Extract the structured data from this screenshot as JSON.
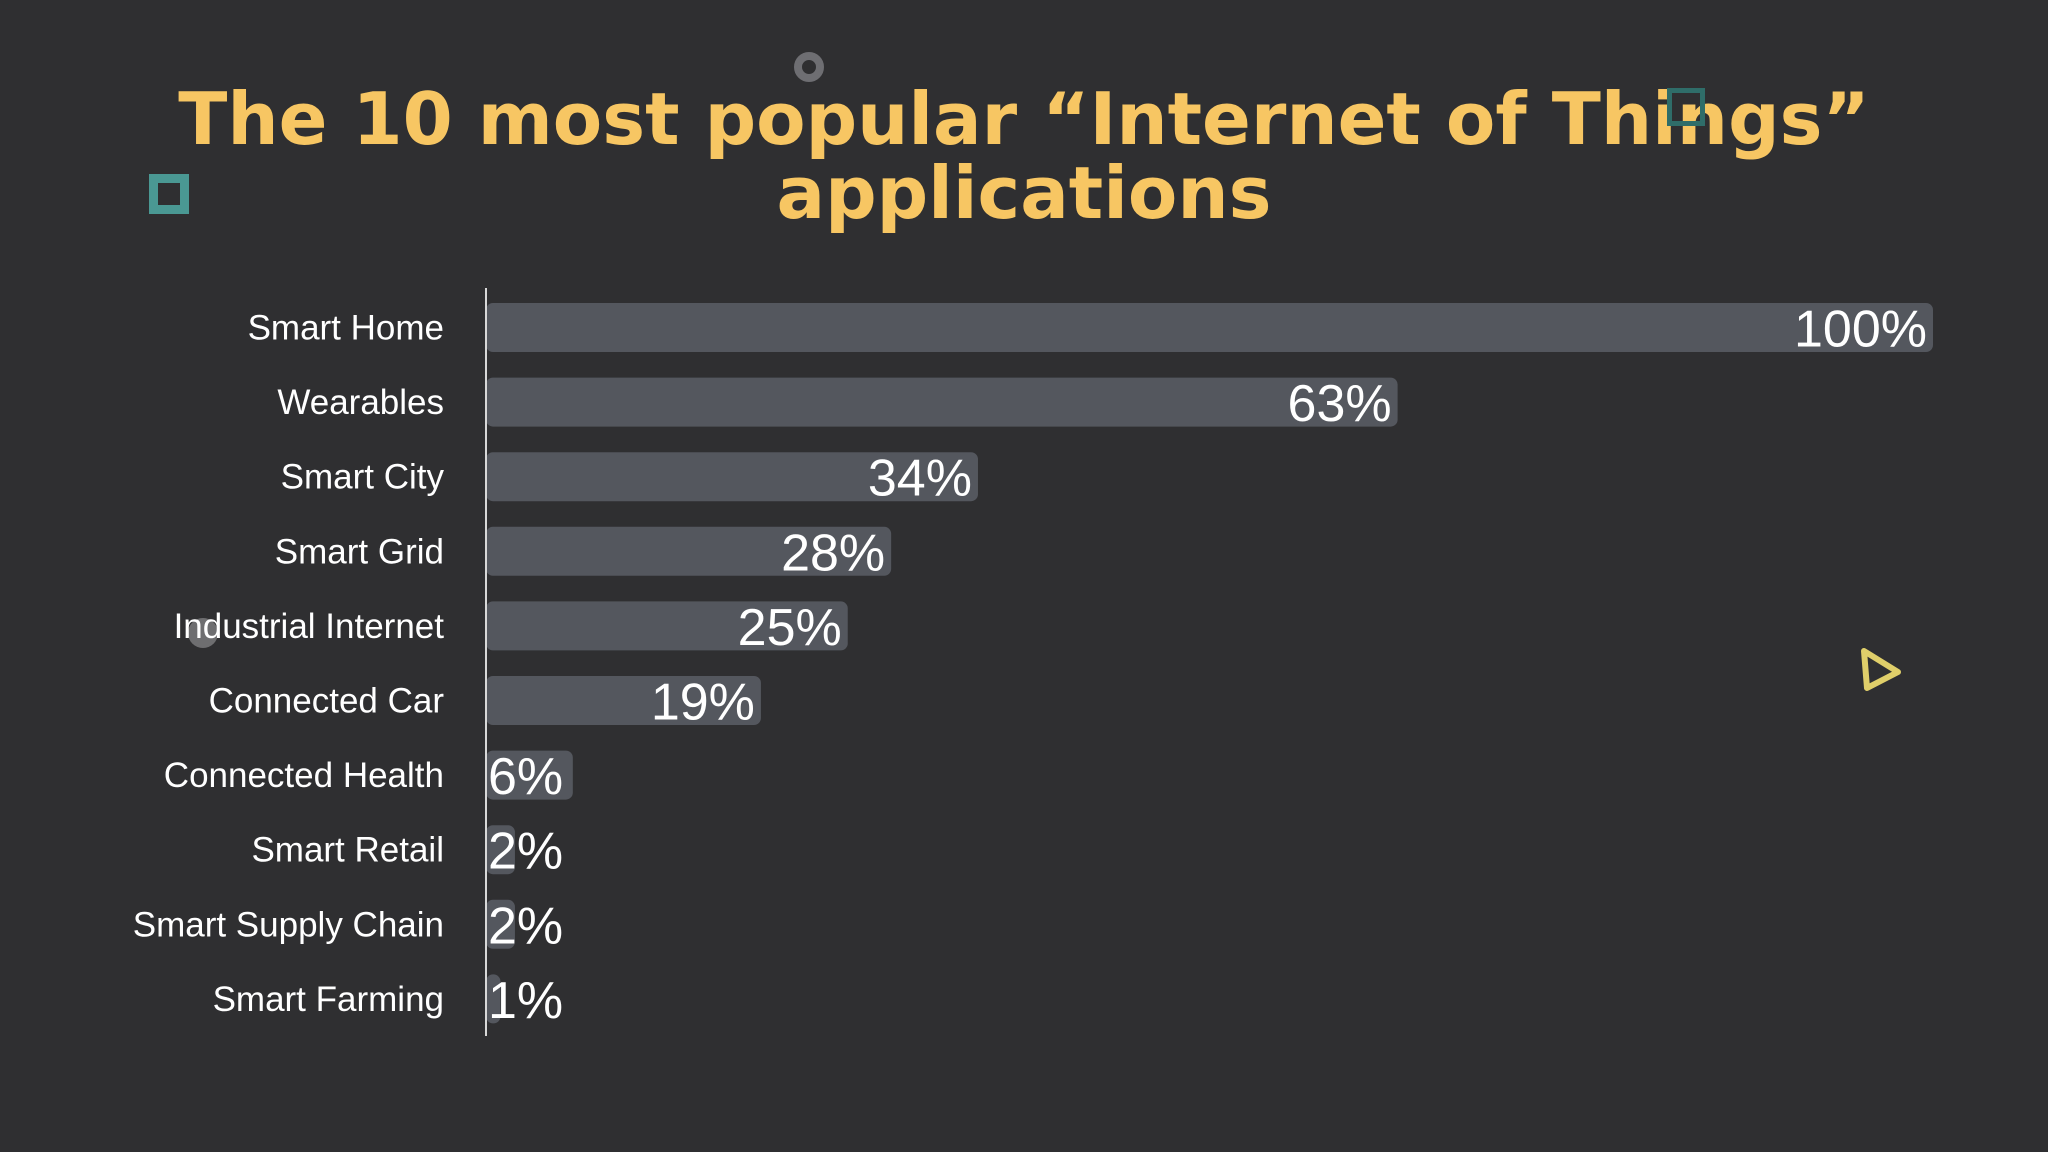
{
  "title_lines": [
    "The 10 most popular “Internet of Things”",
    "applications"
  ],
  "colors": {
    "background": "#2f2f31",
    "title": "#f7c663",
    "bar": "#54575e",
    "axis": "#d8d8d8",
    "label": "#ffffff",
    "accent_teal": "#4a9893",
    "accent_yellow": "#e0cf6a"
  },
  "decorations": [
    "square-outline-icon",
    "ring-icon",
    "dot-icon",
    "play-triangle-icon"
  ],
  "chart_data": {
    "type": "bar",
    "orientation": "horizontal",
    "categories": [
      "Smart Home",
      "Wearables",
      "Smart City",
      "Smart Grid",
      "Industrial Internet",
      "Connected Car",
      "Connected Health",
      "Smart Retail",
      "Smart Supply Chain",
      "Smart Farming"
    ],
    "values": [
      100,
      63,
      34,
      28,
      25,
      19,
      6,
      2,
      2,
      1
    ],
    "value_labels": [
      "100%",
      "63%",
      "34%",
      "28%",
      "25%",
      "19%",
      "6%",
      "2%",
      "2%",
      "1%"
    ],
    "title": "The 10 most popular “Internet of Things” applications",
    "xlabel": "",
    "ylabel": "",
    "xlim": [
      0,
      100
    ],
    "grid": false,
    "legend": "none"
  }
}
